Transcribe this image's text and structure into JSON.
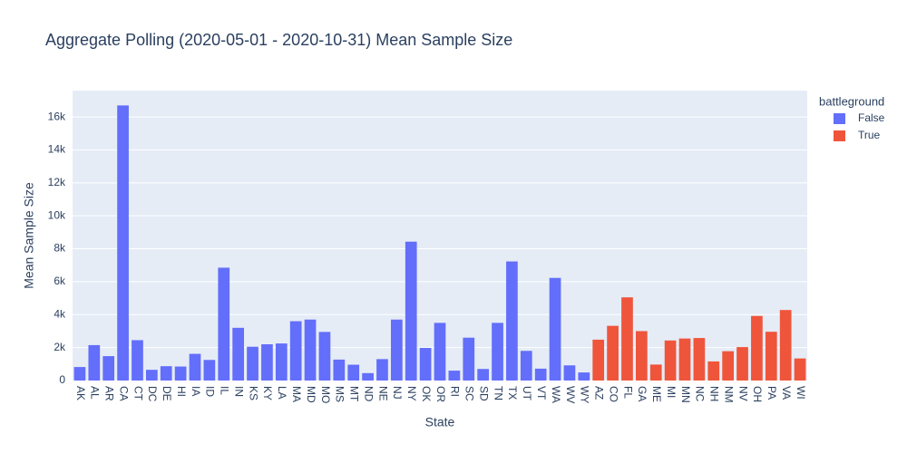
{
  "chart_data": {
    "type": "bar",
    "title": "Aggregate Polling (2020-05-01 - 2020-10-31) Mean Sample Size",
    "x_label": "State",
    "y_label": "Mean Sample Size",
    "legend_title": "battleground",
    "categories": [
      "AK",
      "AL",
      "AR",
      "CA",
      "CT",
      "DC",
      "DE",
      "HI",
      "IA",
      "ID",
      "IL",
      "IN",
      "KS",
      "KY",
      "LA",
      "MA",
      "MD",
      "MO",
      "MS",
      "MT",
      "ND",
      "NE",
      "NJ",
      "NY",
      "OK",
      "OR",
      "RI",
      "SC",
      "SD",
      "TN",
      "TX",
      "UT",
      "VT",
      "WA",
      "WV",
      "WY",
      "AZ",
      "CO",
      "FL",
      "GA",
      "ME",
      "MI",
      "MN",
      "NC",
      "NH",
      "NM",
      "NV",
      "OH",
      "PA",
      "VA",
      "WI"
    ],
    "series": [
      {
        "name": "False",
        "color": "#636efa",
        "values": [
          820,
          2150,
          1480,
          16700,
          2450,
          650,
          870,
          850,
          1620,
          1250,
          6850,
          3200,
          2050,
          2200,
          2250,
          3600,
          3700,
          2950,
          1270,
          960,
          450,
          1300,
          3700,
          8430,
          1980,
          3500,
          600,
          2600,
          700,
          3500,
          7230,
          1800,
          720,
          6230,
          920,
          490,
          null,
          null,
          null,
          null,
          null,
          null,
          null,
          null,
          null,
          null,
          null,
          null,
          null,
          null,
          null
        ]
      },
      {
        "name": "True",
        "color": "#ef553b",
        "values": [
          null,
          null,
          null,
          null,
          null,
          null,
          null,
          null,
          null,
          null,
          null,
          null,
          null,
          null,
          null,
          null,
          null,
          null,
          null,
          null,
          null,
          null,
          null,
          null,
          null,
          null,
          null,
          null,
          null,
          null,
          null,
          null,
          null,
          null,
          null,
          null,
          2480,
          3320,
          5050,
          3000,
          970,
          2430,
          2550,
          2580,
          1160,
          1780,
          2030,
          3920,
          2960,
          4280,
          1340
        ]
      }
    ],
    "ylim": [
      0,
      17600
    ],
    "yticks": [
      0,
      {
        "value": 2000,
        "label": "2k"
      },
      {
        "value": 4000,
        "label": "4k"
      },
      {
        "value": 6000,
        "label": "6k"
      },
      {
        "value": 8000,
        "label": "8k"
      },
      {
        "value": 10000,
        "label": "10k"
      },
      {
        "value": 12000,
        "label": "12k"
      },
      {
        "value": 14000,
        "label": "14k"
      },
      {
        "value": 16000,
        "label": "16k"
      }
    ],
    "grid": true,
    "legend_position": "right"
  }
}
